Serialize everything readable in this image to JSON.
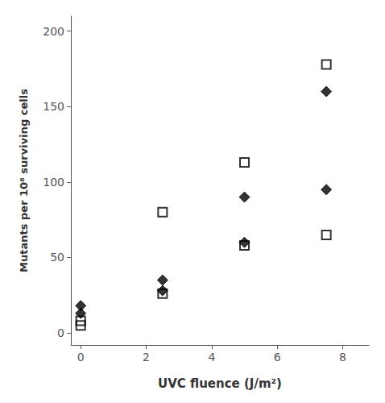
{
  "chart_data": {
    "type": "scatter",
    "xlabel": "UVC fluence (J/m²)",
    "ylabel": "Mutants per 10⁶ surviving cells",
    "x": [
      0,
      0,
      2.5,
      2.5,
      5,
      5,
      7.5,
      7.5
    ],
    "series": [
      {
        "color": "#000000",
        "marker": "diamond",
        "values": [
          18,
          13,
          35,
          28,
          90,
          60,
          160,
          95
        ]
      },
      {
        "color": "#000000",
        "marker": "square-open",
        "values": [
          8,
          5,
          80,
          26,
          113,
          58,
          178,
          65
        ]
      }
    ],
    "xlim": [
      -0.3,
      8.8
    ],
    "ylim": [
      -8,
      210
    ],
    "xticks": [
      0,
      2,
      4,
      6,
      8
    ],
    "yticks": [
      0,
      50,
      100,
      150,
      200
    ],
    "grid": false
  }
}
